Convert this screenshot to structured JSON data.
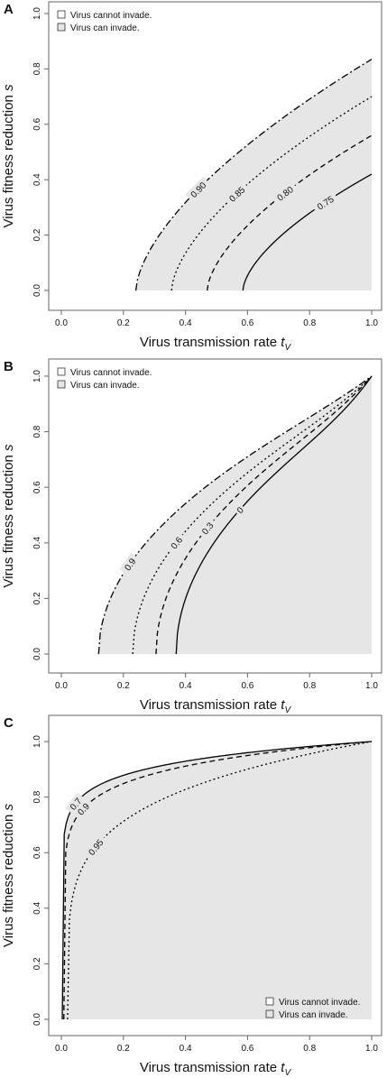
{
  "colors": {
    "region": "#e6e6e6",
    "line": "#000000",
    "frame": "#666666",
    "text": "#111111"
  },
  "chart_data": [
    {
      "panel": "A",
      "type": "line",
      "xlabel": "Virus transmission rate",
      "xlabel_sub": "V",
      "xlabel_var": "t",
      "ylabel": "Virus fitness reduction",
      "ylabel_var": "s",
      "xlim": [
        0,
        1
      ],
      "ylim": [
        0,
        1
      ],
      "xticks": [
        "0.0",
        "0.2",
        "0.4",
        "0.6",
        "0.8",
        "1.0"
      ],
      "yticks": [
        "0.0",
        "0.2",
        "0.4",
        "0.6",
        "0.8",
        "1.0"
      ],
      "legend": {
        "placement": "top-left",
        "items": [
          "Virus cannot invade.",
          "Virus can invade."
        ]
      },
      "region": {
        "t0": 0.24,
        "t1": 1.0,
        "s1": 0.835,
        "alpha": 0.62
      },
      "series": [
        {
          "label": "0.90",
          "t0": 0.24,
          "s1": 0.835,
          "alpha": 0.62,
          "dash": "8,3,2,3",
          "label_t": 0.44
        },
        {
          "label": "0.85",
          "t0": 0.355,
          "s1": 0.7,
          "alpha": 0.62,
          "dash": "2,3",
          "label_t": 0.565
        },
        {
          "label": "0.80",
          "t0": 0.47,
          "s1": 0.56,
          "alpha": 0.62,
          "dash": "6,4",
          "label_t": 0.72
        },
        {
          "label": "0.75",
          "t0": 0.585,
          "s1": 0.42,
          "alpha": 0.62,
          "dash": "none",
          "label_t": 0.85
        }
      ]
    },
    {
      "panel": "B",
      "type": "line",
      "xlabel": "Virus transmission rate",
      "xlabel_sub": "V",
      "xlabel_var": "t",
      "ylabel": "Virus fitness reduction",
      "ylabel_var": "s",
      "xlim": [
        0,
        1
      ],
      "ylim": [
        0,
        1
      ],
      "xticks": [
        "0.0",
        "0.2",
        "0.4",
        "0.6",
        "0.8",
        "1.0"
      ],
      "yticks": [
        "0.0",
        "0.2",
        "0.4",
        "0.6",
        "0.8",
        "1.0"
      ],
      "legend": {
        "placement": "top-left",
        "items": [
          "Virus cannot invade.",
          "Virus can invade."
        ]
      },
      "region": {
        "t0": 0.12,
        "t1": 1.0,
        "s1": 0.96,
        "alpha": 0.5,
        "k": 0.55,
        "p": 6
      },
      "series": [
        {
          "label": "0.9",
          "t0": 0.12,
          "s1": 0.96,
          "alpha": 0.5,
          "k": 0.55,
          "p": 6,
          "dash": "8,3,2,3",
          "label_t": 0.22
        },
        {
          "label": "0.6",
          "t0": 0.23,
          "s1": 0.94,
          "alpha": 0.5,
          "k": 0.55,
          "p": 6,
          "dash": "2,3",
          "label_t": 0.37
        },
        {
          "label": "0.3",
          "t0": 0.305,
          "s1": 0.93,
          "alpha": 0.5,
          "k": 0.55,
          "p": 6,
          "dash": "6,4",
          "label_t": 0.47
        },
        {
          "label": "0",
          "t0": 0.37,
          "s1": 0.91,
          "alpha": 0.5,
          "k": 0.55,
          "p": 6,
          "dash": "none",
          "label_t": 0.575
        }
      ]
    },
    {
      "panel": "C",
      "type": "line",
      "xlabel": "Virus transmission rate",
      "xlabel_sub": "V",
      "xlabel_var": "t",
      "ylabel": "Virus fitness reduction",
      "ylabel_var": "s",
      "xlim": [
        0,
        1
      ],
      "ylim": [
        0,
        1
      ],
      "xticks": [
        "0.0",
        "0.2",
        "0.4",
        "0.6",
        "0.8",
        "1.0"
      ],
      "yticks": [
        "0.0",
        "0.2",
        "0.4",
        "0.6",
        "0.8",
        "1.0"
      ],
      "legend": {
        "placement": "bottom-right",
        "items": [
          "Virus cannot invade.",
          "Virus can invade."
        ]
      },
      "region": {
        "t0": 0.003,
        "t1": 1.0,
        "s1": 1.0,
        "alpha": 0.08
      },
      "series": [
        {
          "label": "0.7",
          "t0": 0.003,
          "s1": 1.0,
          "alpha": 0.08,
          "dash": "none",
          "label_t": 0.045
        },
        {
          "label": "0.9",
          "t0": 0.008,
          "s1": 1.0,
          "alpha": 0.1,
          "dash": "6,4",
          "label_t": 0.07
        },
        {
          "label": "0.95",
          "t0": 0.02,
          "s1": 1.0,
          "alpha": 0.2,
          "dash": "2,3",
          "label_t": 0.11
        }
      ]
    }
  ]
}
